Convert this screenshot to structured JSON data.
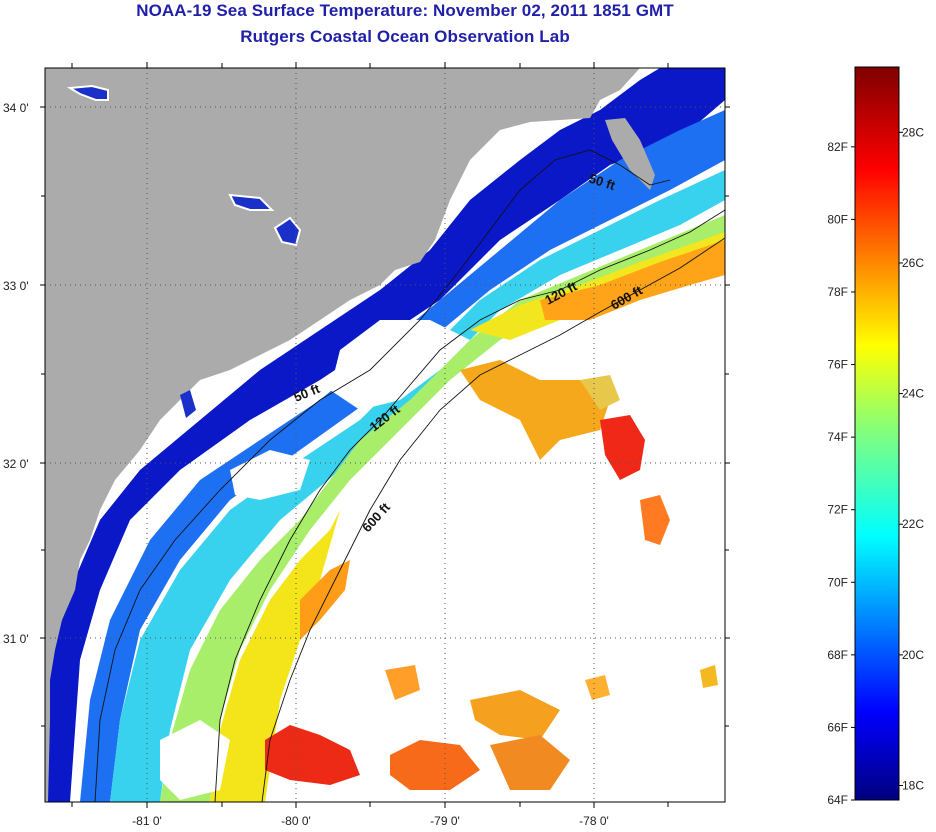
{
  "title": {
    "line1": "NOAA-19 Sea Surface Temperature:  November 02, 2011 1851 GMT",
    "line2": "Rutgers Coastal Ocean Observation Lab"
  },
  "map": {
    "lat_labels": [
      "34 0'",
      "33 0'",
      "32 0'",
      "31 0'"
    ],
    "lon_labels": [
      "-81 0'",
      "-80 0'",
      "-79 0'",
      "-78 0'"
    ],
    "depth_contours": [
      {
        "name": "50 ft",
        "labels": [
          "50 ft",
          "50 ft"
        ]
      },
      {
        "name": "120 ft",
        "labels": [
          "120 ft",
          "120 ft"
        ]
      },
      {
        "name": "600 ft",
        "labels": [
          "600 ft",
          "600 ft"
        ]
      }
    ]
  },
  "colorbar": {
    "fahrenheit_labels": [
      "82F",
      "80F",
      "78F",
      "76F",
      "74F",
      "72F",
      "70F",
      "68F",
      "66F",
      "64F"
    ],
    "celsius_labels": [
      "28C",
      "26C",
      "24C",
      "22C",
      "20C",
      "18C"
    ],
    "range_f": [
      64,
      84.2
    ],
    "range_c": [
      18,
      29
    ]
  },
  "colors": {
    "land": "#ababab",
    "title": "#1f1fa8",
    "cloud": "#ffffff"
  }
}
